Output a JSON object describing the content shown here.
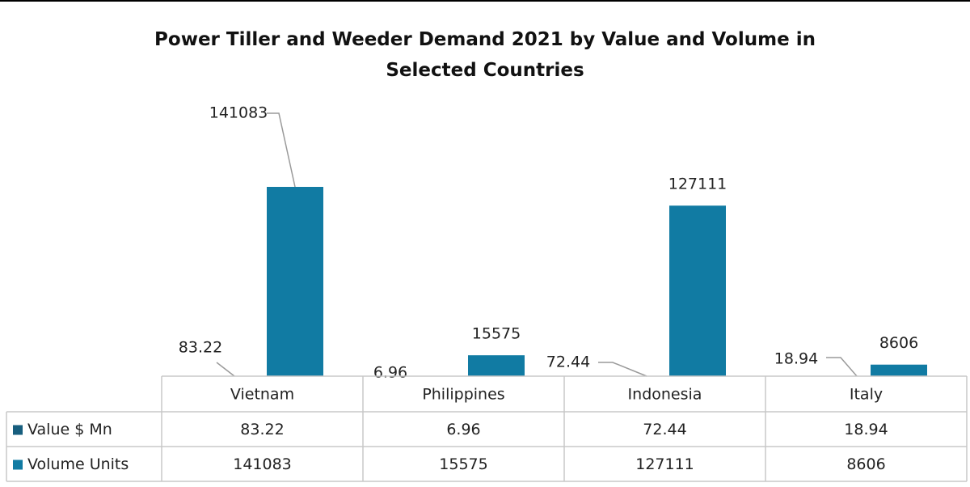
{
  "chart_data": {
    "type": "bar",
    "title": "Power Tiller and Weeder Demand 2021 by Value and Volume in Selected Countries",
    "categories": [
      "Vietnam",
      "Philippines",
      "Indonesia",
      "Italy"
    ],
    "series": [
      {
        "name": "Value $ Mn",
        "color": "#175e7e",
        "values": [
          83.22,
          6.96,
          72.44,
          18.94
        ]
      },
      {
        "name": "Volume Units",
        "color": "#117ba3",
        "values": [
          141083,
          15575,
          127111,
          8606
        ]
      }
    ],
    "data_table": true
  }
}
